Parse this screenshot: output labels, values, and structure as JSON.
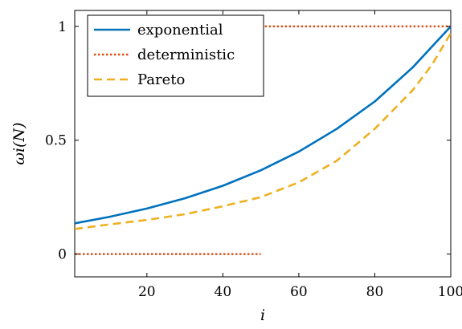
{
  "chart_data": {
    "type": "line",
    "xlabel": "i",
    "ylabel": "ωi(N)",
    "xlim": [
      1,
      100
    ],
    "ylim": [
      -0.1,
      1.07
    ],
    "x_ticks": [
      20,
      40,
      60,
      80,
      100
    ],
    "x_tick_labels": [
      "20",
      "40",
      "60",
      "80",
      "100"
    ],
    "y_ticks": [
      0,
      0.5,
      1
    ],
    "y_tick_labels": [
      "0",
      "0.5",
      "1"
    ],
    "grid": false,
    "legend_position": "top-left",
    "series": [
      {
        "name": "exponential",
        "color": "#0072bd",
        "style": "solid",
        "x": [
          1,
          10,
          20,
          30,
          40,
          50,
          60,
          70,
          80,
          90,
          100
        ],
        "y": [
          0.135,
          0.163,
          0.2,
          0.245,
          0.3,
          0.368,
          0.45,
          0.55,
          0.67,
          0.82,
          1.0
        ]
      },
      {
        "name": "deterministic",
        "color": "#d95319",
        "style": "dotted",
        "segments": [
          {
            "x": [
              1,
              50
            ],
            "y": [
              0,
              0
            ]
          },
          {
            "x": [
              50,
              100
            ],
            "y": [
              1,
              1
            ]
          }
        ]
      },
      {
        "name": "Pareto",
        "color": "#edb120",
        "style": "dashed",
        "x": [
          1,
          10,
          20,
          30,
          40,
          50,
          60,
          70,
          80,
          90,
          95,
          100
        ],
        "y": [
          0.11,
          0.13,
          0.15,
          0.175,
          0.21,
          0.25,
          0.315,
          0.41,
          0.55,
          0.72,
          0.83,
          0.97
        ]
      }
    ]
  }
}
